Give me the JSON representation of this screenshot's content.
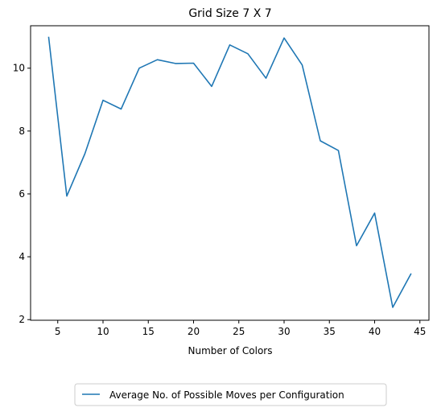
{
  "chart_data": {
    "type": "line",
    "title": "Grid Size 7 X 7",
    "xlabel": "Number of Colors",
    "ylabel": "",
    "xlim": [
      2.0,
      46.0
    ],
    "ylim": [
      1.98,
      11.35
    ],
    "xticks": [
      5,
      10,
      15,
      20,
      25,
      30,
      35,
      40,
      45
    ],
    "yticks": [
      2,
      4,
      6,
      8,
      10
    ],
    "grid": false,
    "legend_position": "below-center",
    "series": [
      {
        "name": "Average No. of Possible Moves per Configuration",
        "color": "#1f77b4",
        "x": [
          4,
          6,
          8,
          10,
          12,
          14,
          16,
          18,
          20,
          22,
          24,
          26,
          28,
          30,
          32,
          34,
          36,
          38,
          40,
          42,
          44
        ],
        "y": [
          10.98,
          5.93,
          7.28,
          8.98,
          8.7,
          10.0,
          10.27,
          10.15,
          10.16,
          9.42,
          10.74,
          10.46,
          9.68,
          10.96,
          10.1,
          7.69,
          7.38,
          4.35,
          5.39,
          2.39,
          3.45
        ]
      }
    ]
  }
}
